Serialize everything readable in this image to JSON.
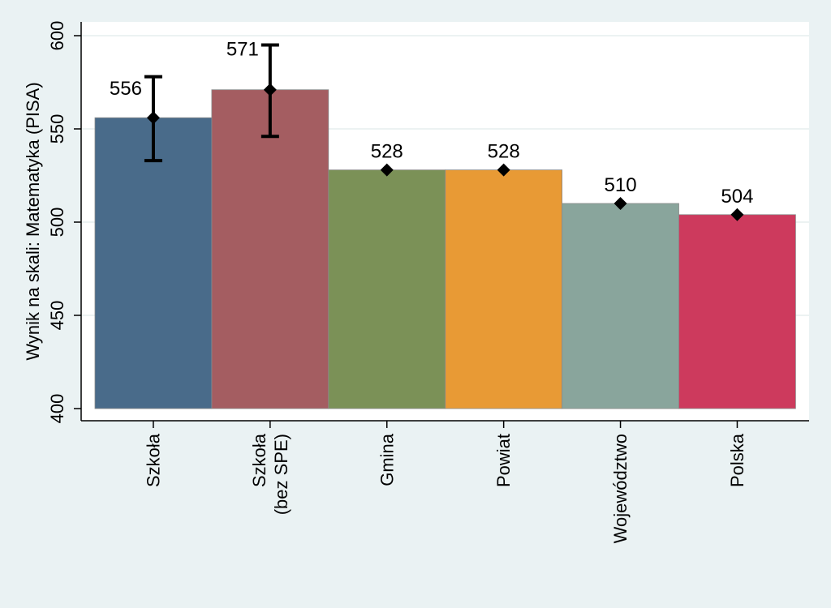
{
  "chart_data": {
    "type": "bar",
    "ylabel": "Wynik na skali: Matematyka (PISA)",
    "ylim": [
      400,
      600
    ],
    "yticks": [
      400,
      450,
      500,
      550,
      600
    ],
    "grid": true,
    "background": "#eaf2f3",
    "plot_background": "#ffffff",
    "categories": [
      {
        "label": [
          "Szkoła"
        ],
        "value": 556,
        "data_label": "556",
        "color": "#496b8a",
        "error": [
          533,
          578
        ]
      },
      {
        "label": [
          "Szkoła",
          "(bez SPE)"
        ],
        "value": 571,
        "data_label": "571",
        "color": "#a45d61",
        "error": [
          546,
          595
        ]
      },
      {
        "label": [
          "Gmina"
        ],
        "value": 528,
        "data_label": "528",
        "color": "#7b9157",
        "error": null
      },
      {
        "label": [
          "Powiat"
        ],
        "value": 528,
        "data_label": "528",
        "color": "#e89a35",
        "error": null
      },
      {
        "label": [
          "Województwo"
        ],
        "value": 510,
        "data_label": "510",
        "color": "#89a59c",
        "error": null
      },
      {
        "label": [
          "Polska"
        ],
        "value": 504,
        "data_label": "504",
        "color": "#cd3a5d",
        "error": null
      }
    ]
  }
}
